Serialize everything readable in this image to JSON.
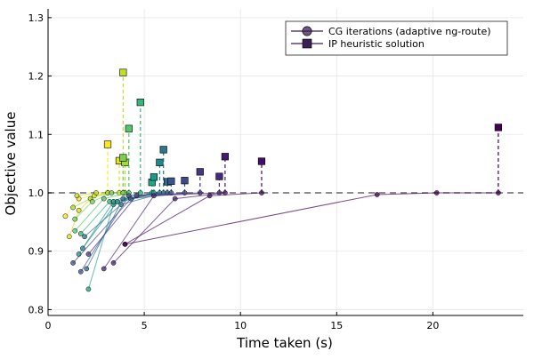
{
  "chart_data": {
    "type": "scatter",
    "xlabel": "Time taken (s)",
    "ylabel": "Objective value",
    "xlim": [
      0,
      24.7
    ],
    "ylim": [
      0.79,
      1.315
    ],
    "xticks": [
      0,
      5,
      10,
      15,
      20
    ],
    "yticks": [
      0.8,
      0.9,
      1.0,
      1.1,
      1.2,
      1.3
    ],
    "xtick_labels": [
      "0",
      "5",
      "10",
      "15",
      "20"
    ],
    "ytick_labels": [
      "0.8",
      "0.9",
      "1.0",
      "1.1",
      "1.2",
      "1.3"
    ],
    "grid": true,
    "legend_position": "top-right",
    "reference_line_y": 1.0,
    "colormap": "viridis",
    "legend": [
      {
        "label": "CG iterations (adaptive ng-route)",
        "marker": "circle",
        "color": "#3b1e55"
      },
      {
        "label": "IP heuristic solution",
        "marker": "square",
        "color": "#3b1e55"
      }
    ],
    "series": [
      {
        "color": "#fde725",
        "path": [
          [
            0.9,
            0.96
          ],
          [
            1.6,
            0.99
          ],
          [
            3.1,
            1.0
          ]
        ],
        "ip": [
          3.1,
          1.083
        ]
      },
      {
        "color": "#dde318",
        "path": [
          [
            1.1,
            0.925
          ],
          [
            1.6,
            0.97
          ],
          [
            2.4,
            0.995
          ],
          [
            3.7,
            1.0
          ]
        ],
        "ip": [
          3.7,
          1.055
        ]
      },
      {
        "color": "#c0df25",
        "path": [
          [
            1.5,
            0.995
          ],
          [
            2.5,
            1.0
          ],
          [
            3.9,
            1.0
          ]
        ],
        "ip": [
          3.9,
          1.206
        ]
      },
      {
        "color": "#a5db36",
        "path": [
          [
            1.3,
            0.975
          ],
          [
            2.2,
            0.99
          ],
          [
            3.1,
            1.0
          ],
          [
            4.0,
            1.0
          ]
        ],
        "ip": [
          4.0,
          1.052
        ]
      },
      {
        "color": "#7ad151",
        "path": [
          [
            1.4,
            0.955
          ],
          [
            2.3,
            0.985
          ],
          [
            3.3,
            1.0
          ],
          [
            3.9,
            1.0
          ]
        ],
        "ip": [
          3.9,
          1.06
        ]
      },
      {
        "color": "#54c568",
        "path": [
          [
            1.4,
            0.935
          ],
          [
            2.9,
            0.99
          ],
          [
            4.2,
            1.0
          ]
        ],
        "ip": [
          4.2,
          1.11
        ]
      },
      {
        "color": "#35b779",
        "path": [
          [
            1.7,
            0.93
          ],
          [
            3.2,
            0.985
          ],
          [
            4.8,
            1.0
          ]
        ],
        "ip": [
          4.8,
          1.155
        ]
      },
      {
        "color": "#22a884",
        "path": [
          [
            2.1,
            0.835
          ],
          [
            3.4,
            0.98
          ],
          [
            5.4,
            1.0
          ]
        ],
        "ip": [
          5.4,
          1.018
        ]
      },
      {
        "color": "#1f988b",
        "path": [
          [
            1.6,
            0.895
          ],
          [
            3.4,
            0.985
          ],
          [
            5.5,
            1.0
          ]
        ],
        "ip": [
          5.5,
          1.027
        ]
      },
      {
        "color": "#23888e",
        "path": [
          [
            1.8,
            0.905
          ],
          [
            3.6,
            0.985
          ],
          [
            5.8,
            1.0
          ]
        ],
        "ip": [
          5.8,
          1.052
        ]
      },
      {
        "color": "#2a788e",
        "path": [
          [
            1.9,
            0.925
          ],
          [
            3.8,
            0.98
          ],
          [
            6.0,
            1.0
          ]
        ],
        "ip": [
          6.0,
          1.074
        ]
      },
      {
        "color": "#31688e",
        "path": [
          [
            2.0,
            0.87
          ],
          [
            3.9,
            0.99
          ],
          [
            6.2,
            1.0
          ]
        ],
        "ip": [
          6.2,
          1.019
        ]
      },
      {
        "color": "#39568c",
        "path": [
          [
            1.7,
            0.865
          ],
          [
            4.2,
            0.995
          ],
          [
            6.4,
            1.0
          ]
        ],
        "ip": [
          6.4,
          1.02
        ]
      },
      {
        "color": "#3e4989",
        "path": [
          [
            1.3,
            0.88
          ],
          [
            4.3,
            0.99
          ],
          [
            7.1,
            1.0
          ]
        ],
        "ip": [
          7.1,
          1.021
        ]
      },
      {
        "color": "#453781",
        "path": [
          [
            2.1,
            0.895
          ],
          [
            4.6,
            0.995
          ],
          [
            7.9,
            1.0
          ]
        ],
        "ip": [
          7.9,
          1.036
        ]
      },
      {
        "color": "#482878",
        "path": [
          [
            2.9,
            0.87
          ],
          [
            5.5,
            0.995
          ],
          [
            8.9,
            1.0
          ]
        ],
        "ip": [
          8.9,
          1.028
        ]
      },
      {
        "color": "#481a6c",
        "path": [
          [
            3.4,
            0.88
          ],
          [
            6.6,
            0.99
          ],
          [
            9.2,
            1.0
          ]
        ],
        "ip": [
          9.2,
          1.062
        ]
      },
      {
        "color": "#440f62",
        "path": [
          [
            4.0,
            0.912
          ],
          [
            8.4,
            0.995
          ],
          [
            11.1,
            1.0
          ]
        ],
        "ip": [
          11.1,
          1.054
        ]
      },
      {
        "color": "#440154",
        "path": [
          [
            4.0,
            0.912
          ],
          [
            17.1,
            0.997
          ],
          [
            20.2,
            1.0
          ],
          [
            23.4,
            1.0
          ]
        ],
        "ip": [
          23.4,
          1.112
        ]
      }
    ]
  }
}
